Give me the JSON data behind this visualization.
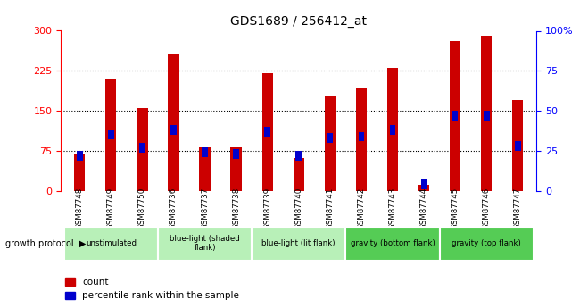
{
  "title": "GDS1689 / 256412_at",
  "samples": [
    "GSM87748",
    "GSM87749",
    "GSM87750",
    "GSM87736",
    "GSM87737",
    "GSM87738",
    "GSM87739",
    "GSM87740",
    "GSM87741",
    "GSM87742",
    "GSM87743",
    "GSM87744",
    "GSM87745",
    "GSM87746",
    "GSM87747"
  ],
  "counts": [
    68,
    210,
    155,
    255,
    82,
    82,
    220,
    62,
    178,
    192,
    230,
    12,
    280,
    290,
    170
  ],
  "percentiles": [
    22,
    35,
    27,
    38,
    24,
    23,
    37,
    22,
    33,
    34,
    38,
    4,
    47,
    47,
    28
  ],
  "groups": [
    {
      "label": "unstimulated",
      "start": 0,
      "end": 3,
      "color": "#b8f0b8"
    },
    {
      "label": "blue-light (shaded\nflank)",
      "start": 3,
      "end": 6,
      "color": "#b8f0b8"
    },
    {
      "label": "blue-light (lit flank)",
      "start": 6,
      "end": 9,
      "color": "#b8f0b8"
    },
    {
      "label": "gravity (bottom flank)",
      "start": 9,
      "end": 12,
      "color": "#55cc55"
    },
    {
      "label": "gravity (top flank)",
      "start": 12,
      "end": 15,
      "color": "#55cc55"
    }
  ],
  "ylim": [
    0,
    300
  ],
  "y2lim": [
    0,
    100
  ],
  "yticks": [
    0,
    75,
    150,
    225,
    300
  ],
  "y2ticks": [
    0,
    25,
    50,
    75,
    100
  ],
  "bar_color": "#cc0000",
  "pct_color": "#0000cc",
  "bar_width": 0.35,
  "tick_label_bg": "#cccccc",
  "plot_bg": "#ffffff"
}
